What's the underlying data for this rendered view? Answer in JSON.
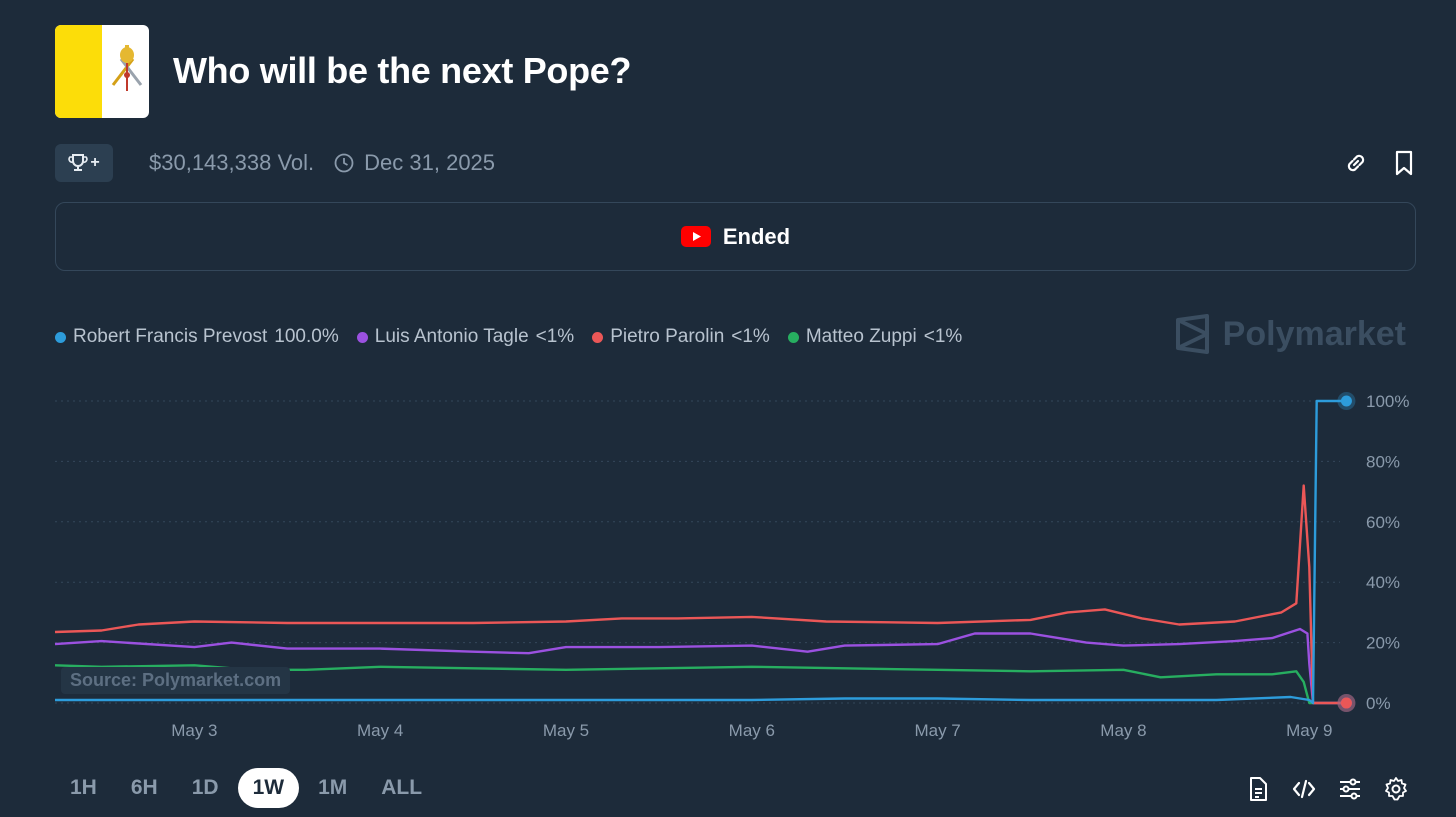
{
  "header": {
    "title": "Who will be the next Pope?",
    "volume": "$30,143,338 Vol.",
    "end_date": "Dec 31, 2025",
    "trophy_plus": "+"
  },
  "status": {
    "ended_label": "Ended"
  },
  "brand": {
    "name": "Polymarket"
  },
  "source_label": "Source: Polymarket.com",
  "legend": [
    {
      "name": "Robert Francis Prevost",
      "value": "100.0%",
      "color": "#2d9cdb"
    },
    {
      "name": "Luis Antonio Tagle",
      "value": "<1%",
      "color": "#9b51e0"
    },
    {
      "name": "Pietro Parolin",
      "value": "<1%",
      "color": "#eb5757"
    },
    {
      "name": "Matteo Zuppi",
      "value": "<1%",
      "color": "#27ae60"
    }
  ],
  "time_ranges": [
    "1H",
    "6H",
    "1D",
    "1W",
    "1M",
    "ALL"
  ],
  "active_range": "1W",
  "icons": {
    "trophy": "trophy-icon",
    "clock": "clock-icon",
    "link": "link-icon",
    "bookmark": "bookmark-icon",
    "youtube": "youtube-icon",
    "document": "document-icon",
    "embed": "code-icon",
    "sliders": "sliders-icon",
    "settings": "gear-icon",
    "brand": "polymarket-logo-icon"
  },
  "chart_data": {
    "type": "line",
    "title": "Who will be the next Pope?",
    "x_unit": "days (May)",
    "xlim": [
      2.25,
      9.23
    ],
    "ylim": [
      0,
      100
    ],
    "x_ticks": [
      3,
      4,
      5,
      6,
      7,
      8,
      9
    ],
    "x_tick_labels": [
      "May 3",
      "May 4",
      "May 5",
      "May 6",
      "May 7",
      "May 8",
      "May 9"
    ],
    "y_ticks": [
      0,
      20,
      40,
      60,
      80,
      100
    ],
    "y_tick_labels": [
      "0%",
      "20%",
      "40%",
      "60%",
      "80%",
      "100%"
    ],
    "grid": true,
    "series": [
      {
        "name": "Robert Francis Prevost",
        "color": "#2d9cdb",
        "x": [
          2.25,
          3.0,
          3.5,
          4.0,
          4.5,
          5.0,
          5.5,
          6.0,
          6.5,
          7.0,
          7.5,
          8.0,
          8.5,
          8.9,
          9.0,
          9.02,
          9.04,
          9.2
        ],
        "y": [
          1,
          1,
          1,
          1,
          1,
          1,
          1,
          1,
          1.5,
          1.5,
          1,
          1,
          1,
          2,
          1,
          0,
          100,
          100
        ]
      },
      {
        "name": "Luis Antonio Tagle",
        "color": "#9b51e0",
        "x": [
          2.25,
          2.5,
          3.0,
          3.2,
          3.5,
          4.0,
          4.5,
          4.8,
          5.0,
          5.5,
          6.0,
          6.3,
          6.5,
          7.0,
          7.2,
          7.5,
          7.8,
          8.0,
          8.3,
          8.6,
          8.8,
          8.95,
          8.99,
          9.0,
          9.02,
          9.2
        ],
        "y": [
          19.5,
          20.5,
          18.5,
          20,
          18,
          18,
          17,
          16.5,
          18.5,
          18.5,
          19,
          17,
          19,
          19.5,
          23,
          23,
          20,
          19,
          19.5,
          20.5,
          21.5,
          24.5,
          23,
          13,
          0,
          0
        ]
      },
      {
        "name": "Pietro Parolin",
        "color": "#eb5757",
        "x": [
          2.25,
          2.5,
          2.7,
          3.0,
          3.5,
          4.0,
          4.5,
          5.0,
          5.3,
          5.6,
          6.0,
          6.4,
          7.0,
          7.5,
          7.7,
          7.9,
          8.1,
          8.3,
          8.6,
          8.85,
          8.93,
          8.97,
          9.0,
          9.02,
          9.2
        ],
        "y": [
          23.5,
          24,
          26,
          27,
          26.5,
          26.5,
          26.5,
          27,
          28,
          28,
          28.5,
          27,
          26.5,
          27.5,
          30,
          31,
          28,
          26,
          27,
          30,
          33,
          72,
          45,
          0,
          0
        ]
      },
      {
        "name": "Matteo Zuppi",
        "color": "#27ae60",
        "x": [
          2.25,
          2.5,
          3.0,
          3.3,
          3.6,
          4.0,
          4.5,
          5.0,
          5.5,
          6.0,
          6.5,
          7.0,
          7.5,
          8.0,
          8.2,
          8.5,
          8.8,
          8.93,
          8.97,
          9.0,
          9.2
        ],
        "y": [
          12.5,
          12,
          12.5,
          11,
          11,
          12,
          11.5,
          11,
          11.5,
          12,
          11.5,
          11,
          10.5,
          11,
          8.5,
          9.5,
          9.5,
          10.5,
          7,
          0,
          0
        ]
      }
    ]
  }
}
